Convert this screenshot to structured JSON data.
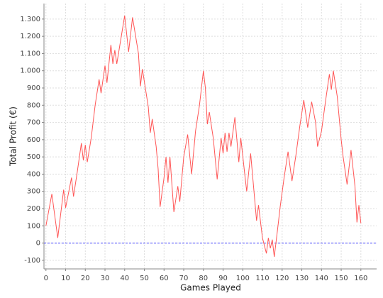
{
  "chart_data": {
    "type": "line",
    "x_label": "Games Played",
    "y_label": "Total Profit (€)",
    "x": [
      0,
      3,
      6,
      9,
      10,
      13,
      14,
      16,
      18,
      19,
      20,
      21,
      23,
      25,
      27,
      28,
      30,
      31,
      33,
      34,
      35,
      36,
      38,
      40,
      42,
      44,
      47,
      48,
      49,
      52,
      53,
      54,
      56,
      57,
      58,
      60,
      61,
      62,
      63,
      65,
      67,
      68,
      70,
      72,
      74,
      76,
      78,
      80,
      81,
      82,
      83,
      85,
      87,
      89,
      90,
      91,
      92,
      93,
      94,
      96,
      98,
      99,
      101,
      102,
      104,
      107,
      108,
      110,
      112,
      113,
      114,
      115,
      116,
      118,
      119,
      121,
      123,
      125,
      127,
      129,
      131,
      133,
      135,
      137,
      138,
      140,
      142,
      144,
      145,
      146,
      148,
      150,
      151,
      153,
      155,
      157,
      158,
      159,
      160
    ],
    "values": [
      100,
      285,
      30,
      310,
      205,
      380,
      270,
      420,
      580,
      480,
      570,
      470,
      610,
      800,
      950,
      870,
      1030,
      930,
      1150,
      1040,
      1120,
      1040,
      1180,
      1320,
      1110,
      1310,
      1100,
      910,
      1010,
      790,
      640,
      720,
      560,
      430,
      210,
      380,
      500,
      350,
      500,
      180,
      330,
      240,
      500,
      630,
      400,
      650,
      800,
      1000,
      900,
      690,
      760,
      610,
      370,
      610,
      520,
      640,
      530,
      640,
      560,
      730,
      470,
      610,
      400,
      300,
      520,
      130,
      220,
      30,
      -60,
      30,
      -30,
      20,
      -80,
      110,
      210,
      380,
      530,
      360,
      510,
      680,
      830,
      670,
      820,
      700,
      560,
      650,
      820,
      980,
      890,
      1000,
      850,
      600,
      500,
      340,
      540,
      330,
      120,
      220,
      115
    ],
    "color": "#ff5555",
    "xlim": [
      -1,
      168
    ],
    "ylim": [
      -150,
      1390
    ],
    "xticks": [
      0,
      10,
      20,
      30,
      40,
      50,
      60,
      70,
      80,
      90,
      100,
      110,
      120,
      130,
      140,
      150,
      160
    ],
    "yticks": [
      -100,
      0,
      100,
      200,
      300,
      400,
      500,
      600,
      700,
      800,
      900,
      {
        "value": 1000,
        "label": "1.000"
      },
      {
        "value": 1100,
        "label": "1.100"
      },
      {
        "value": 1200,
        "label": "1.200"
      },
      {
        "value": 1300,
        "label": "1.300"
      }
    ],
    "grid": true,
    "zero_line": true,
    "zero_line_color": "#4444ff"
  }
}
